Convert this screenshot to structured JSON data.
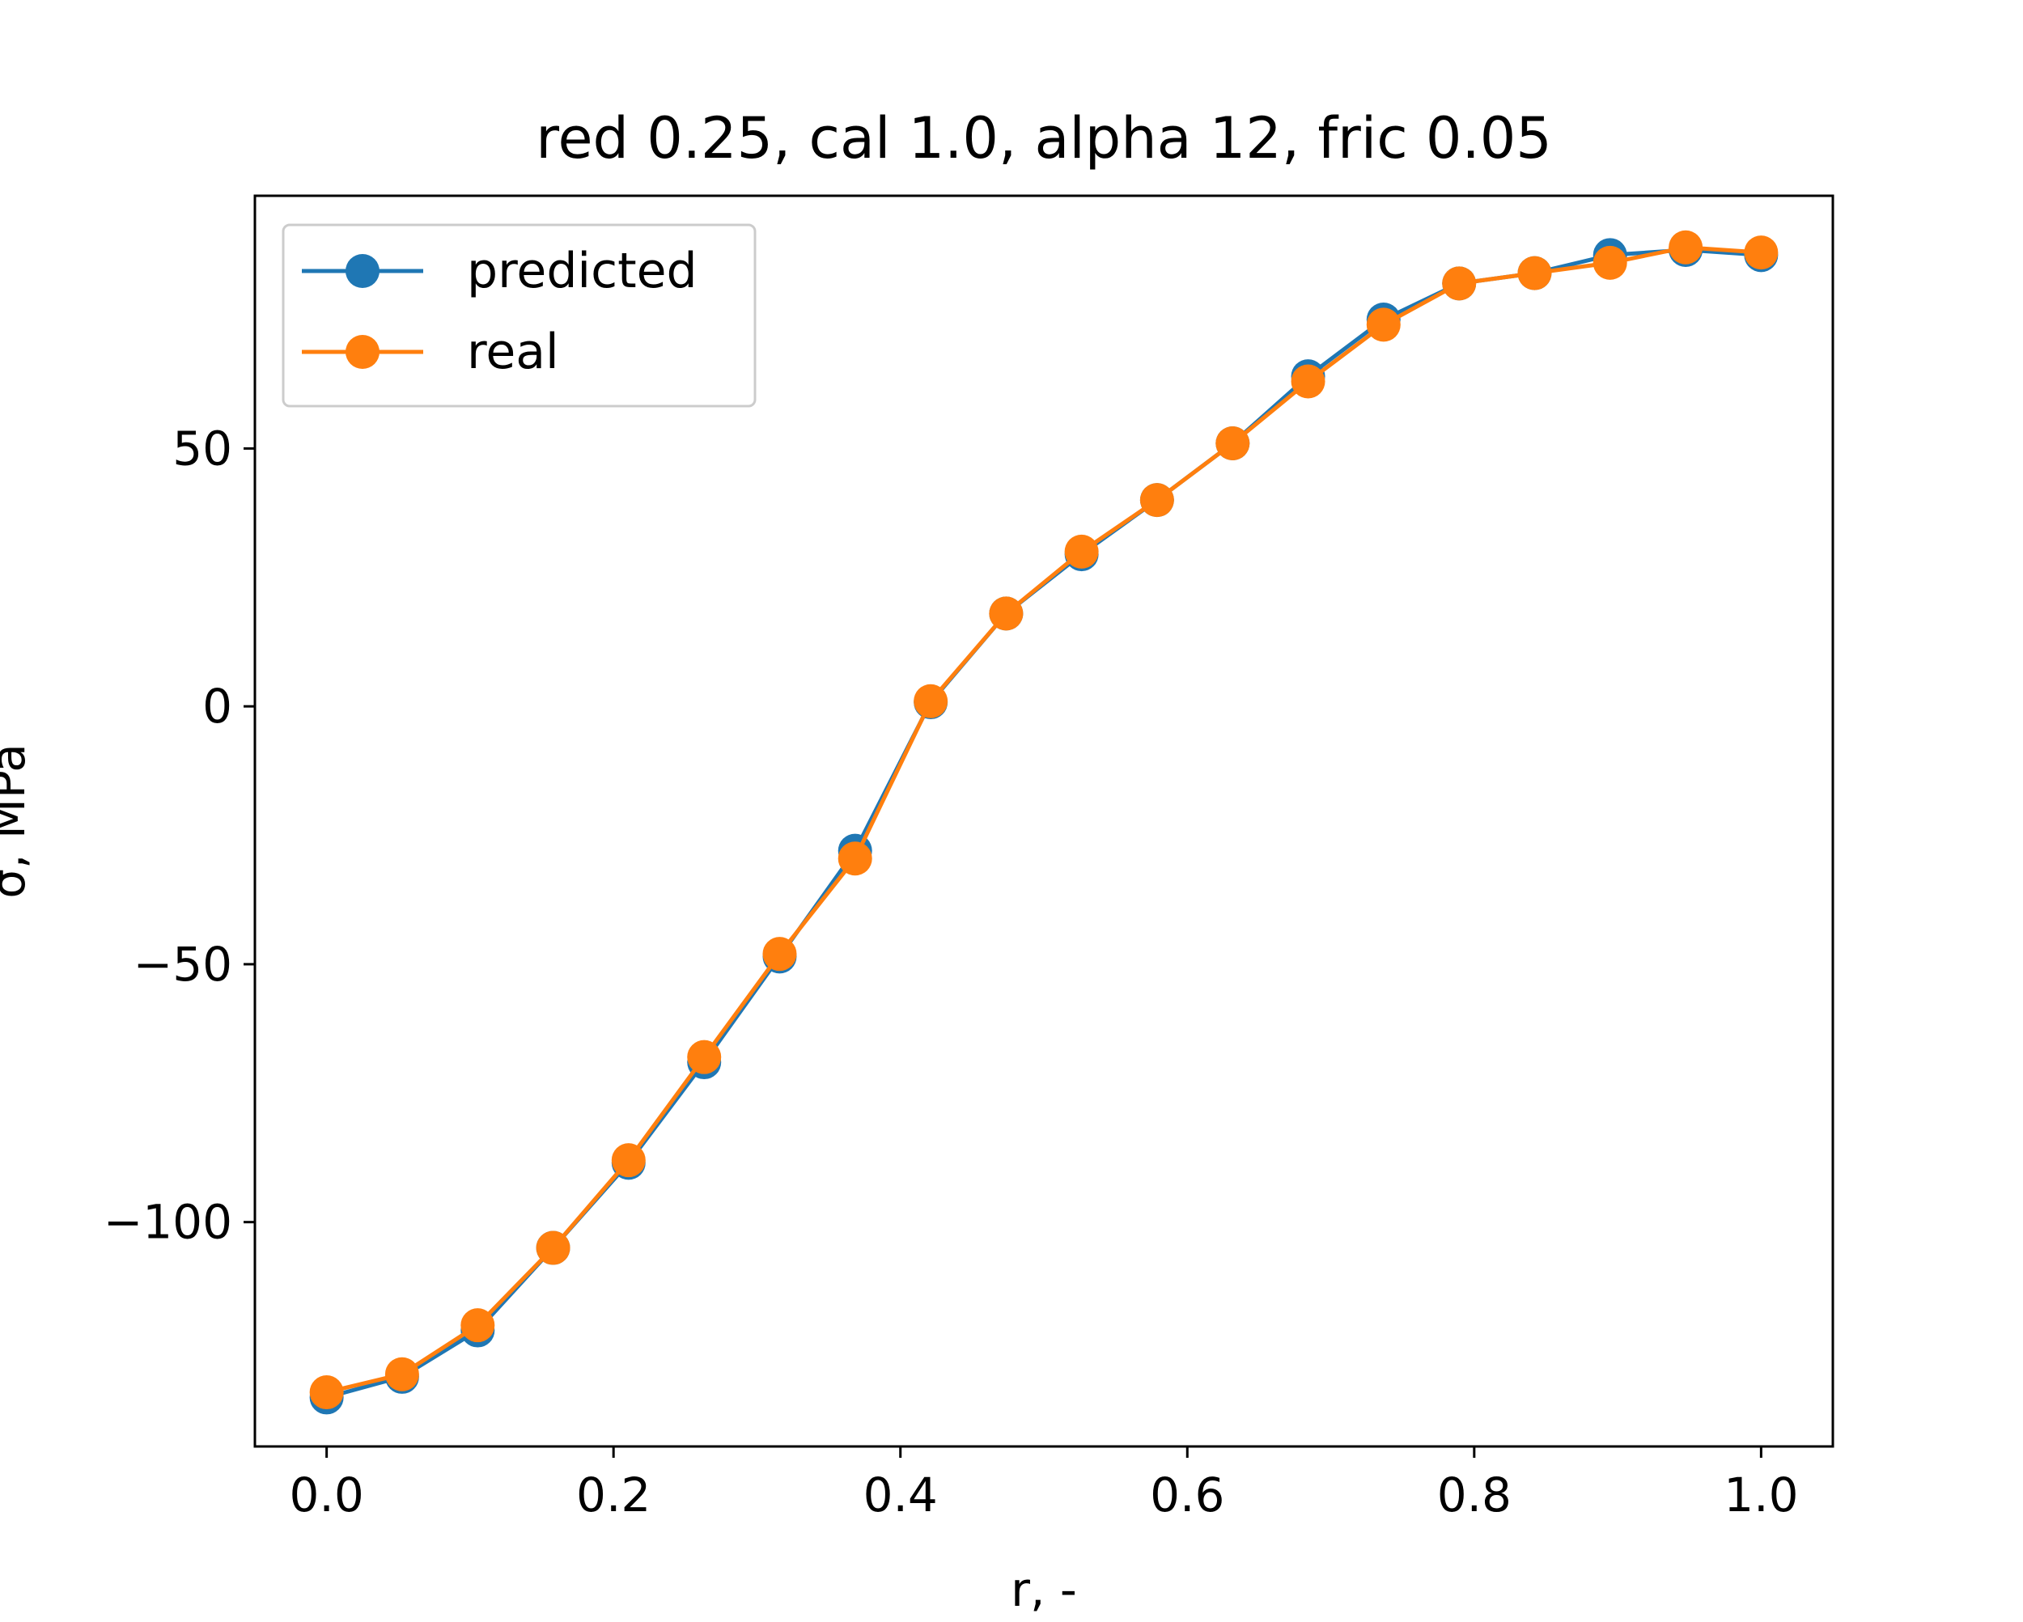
{
  "chart_data": {
    "type": "line",
    "title": "red 0.25, cal 1.0, alpha 12, fric 0.05",
    "xlabel": "r, -",
    "ylabel": "σ, MPa",
    "xlim": [
      -0.05,
      1.05
    ],
    "ylim": [
      -143.5,
      99
    ],
    "x_ticks": [
      0.0,
      0.2,
      0.4,
      0.6,
      0.8,
      1.0
    ],
    "x_tick_labels": [
      "0.0",
      "0.2",
      "0.4",
      "0.6",
      "0.8",
      "1.0"
    ],
    "y_ticks": [
      -100,
      -50,
      0,
      50
    ],
    "y_tick_labels": [
      "−100",
      "−50",
      "0",
      "50"
    ],
    "grid": false,
    "legend_position": "top-left",
    "x": [
      0.0,
      0.0526,
      0.1053,
      0.1579,
      0.2105,
      0.2632,
      0.3158,
      0.3684,
      0.4211,
      0.4737,
      0.5263,
      0.5789,
      0.6316,
      0.6842,
      0.7368,
      0.7895,
      0.8421,
      0.8947,
      0.9474,
      1.0
    ],
    "series": [
      {
        "name": "predicted",
        "color": "#1f77b4",
        "values": [
          -134,
          -130,
          -121,
          -105,
          -88.5,
          -69,
          -48.5,
          -28,
          0.8,
          18,
          29.5,
          40,
          51,
          64,
          75,
          82,
          84,
          87.5,
          88.5,
          87.5
        ]
      },
      {
        "name": "real",
        "color": "#ff7f0e",
        "values": [
          -133,
          -129.5,
          -120,
          -105,
          -88,
          -68,
          -48,
          -29.5,
          1,
          18,
          30,
          40,
          51,
          63,
          74,
          82,
          84,
          86,
          89,
          88
        ]
      }
    ]
  }
}
